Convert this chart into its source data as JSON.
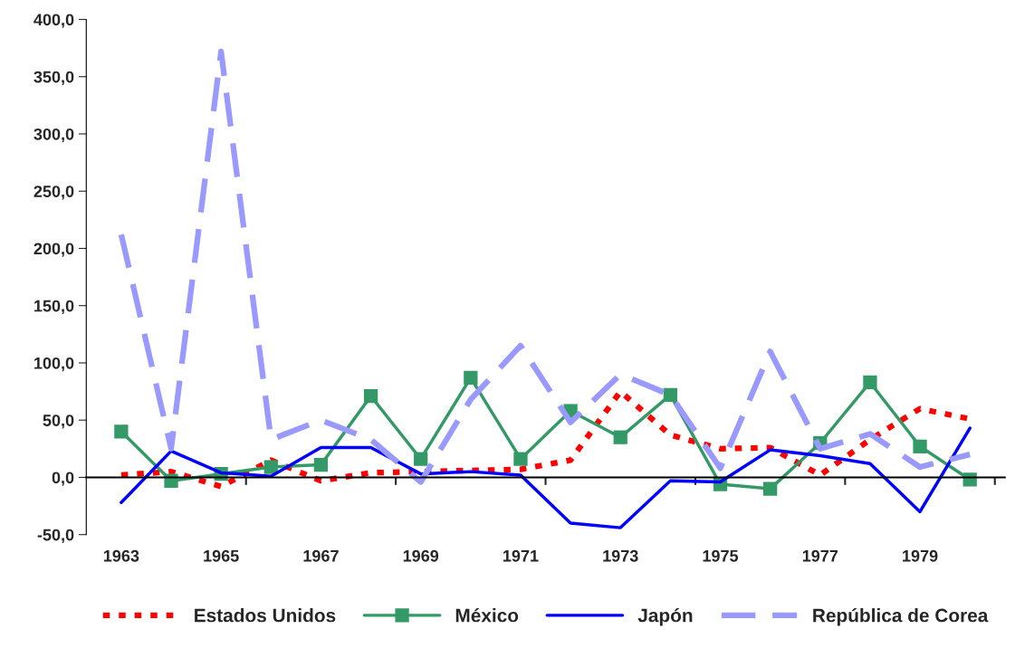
{
  "chart_data": {
    "type": "line",
    "categories": [
      "1963",
      null,
      "1965",
      null,
      "1967",
      null,
      "1969",
      null,
      "1971",
      null,
      "1973",
      null,
      "1975",
      null,
      "1977",
      null,
      "1979",
      null
    ],
    "series": [
      {
        "name": "Estados Unidos",
        "color": "#ff0000",
        "line_style": "dotted",
        "marker": "none",
        "values": [
          2,
          5,
          -8,
          15,
          -3,
          4,
          5,
          6,
          7,
          15,
          75,
          37,
          25,
          26,
          2,
          33,
          60,
          51
        ]
      },
      {
        "name": "México",
        "color": "#339966",
        "line_style": "solid",
        "marker": "square",
        "values": [
          40,
          -3,
          3,
          9,
          11,
          71,
          16,
          87,
          16,
          58,
          35,
          72,
          -6,
          -10,
          30,
          83,
          27,
          -2
        ]
      },
      {
        "name": "Japón",
        "color": "#0000ff",
        "line_style": "solid",
        "marker": "none",
        "values": [
          -22,
          23,
          4,
          1,
          26,
          26,
          3,
          5,
          2,
          -40,
          -44,
          -3,
          -4,
          24,
          19,
          12,
          -30,
          43
        ]
      },
      {
        "name": "República de Corea",
        "color": "#9999ff",
        "line_style": "dashed",
        "marker": "none",
        "values": [
          212,
          25,
          372,
          33,
          50,
          33,
          -4,
          68,
          115,
          48,
          90,
          72,
          8,
          110,
          25,
          38,
          9,
          20
        ]
      }
    ],
    "ylim": [
      -50,
      400
    ],
    "yticks": [
      {
        "value": -50,
        "label": "-50,0"
      },
      {
        "value": 0,
        "label": "0,0"
      },
      {
        "value": 50,
        "label": "50,0"
      },
      {
        "value": 100,
        "label": "100,0"
      },
      {
        "value": 150,
        "label": "150,0"
      },
      {
        "value": 200,
        "label": "200,0"
      },
      {
        "value": 250,
        "label": "250,0"
      },
      {
        "value": 300,
        "label": "300,0"
      },
      {
        "value": 350,
        "label": "350,0"
      },
      {
        "value": 400,
        "label": "400,0"
      }
    ],
    "legend": "bottom"
  }
}
